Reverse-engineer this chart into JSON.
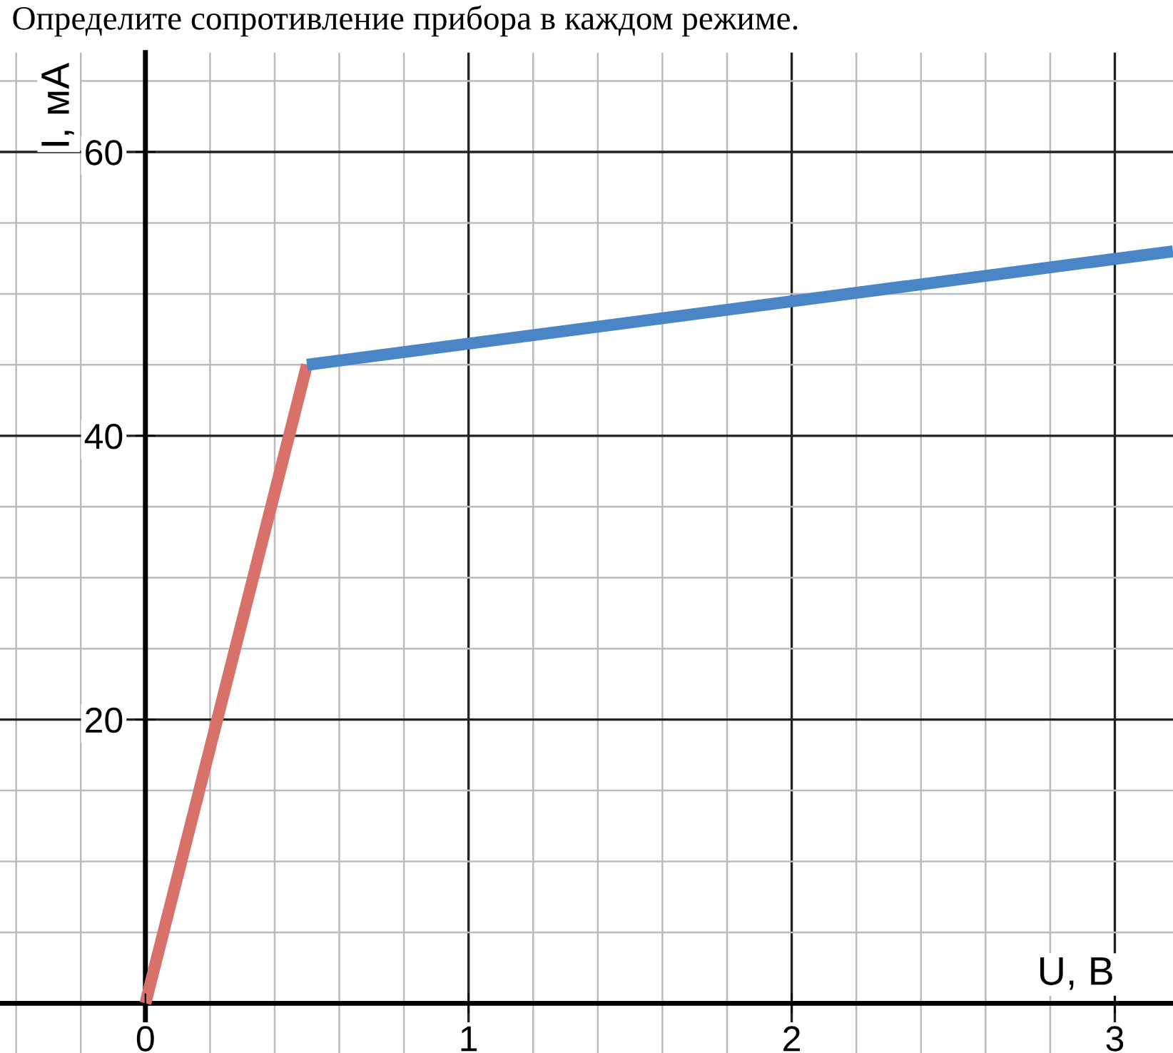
{
  "chart_data": {
    "type": "line",
    "title": "Определите сопротивление прибора в каждом режиме.",
    "xlabel": "U, В",
    "ylabel": "I, мА",
    "series": [
      {
        "color": "#d9716b",
        "x": [
          0,
          0.5
        ],
        "values": [
          0,
          45
        ]
      },
      {
        "color": "#4a86c6",
        "x": [
          0.5,
          3.18
        ],
        "values": [
          45,
          53.0
        ]
      }
    ],
    "xlim": [
      -0.45,
      3.18
    ],
    "ylim": [
      -3.5,
      67
    ],
    "xticks": [
      0,
      1,
      2,
      3
    ],
    "yticks": [
      20,
      40,
      60
    ],
    "grid": true,
    "marker": "none",
    "line_style": "solid"
  }
}
